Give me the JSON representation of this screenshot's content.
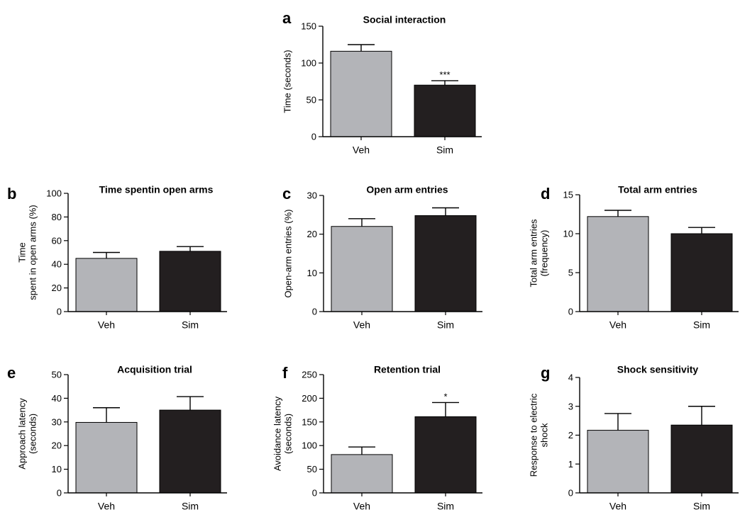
{
  "colors": {
    "veh": "#b3b4b8",
    "sim": "#231f20",
    "axis": "#000000"
  },
  "chart_data": [
    {
      "panel": "a",
      "type": "bar",
      "title": "Social interaction",
      "ylabel": [
        "Time (seconds)"
      ],
      "ylim": [
        0,
        150
      ],
      "yticks": [
        0,
        50,
        100,
        150
      ],
      "categories": [
        "Veh",
        "Sim"
      ],
      "values": [
        116,
        70
      ],
      "errors": [
        9,
        6
      ],
      "significance": [
        "",
        "***"
      ]
    },
    {
      "panel": "b",
      "type": "bar",
      "title": "Time spentin open arms",
      "ylabel": [
        "Time",
        "spent in open arms (%)"
      ],
      "ylim": [
        0,
        100
      ],
      "yticks": [
        0,
        20,
        40,
        60,
        80,
        100
      ],
      "categories": [
        "Veh",
        "Sim"
      ],
      "values": [
        45,
        51
      ],
      "errors": [
        5,
        4
      ],
      "significance": [
        "",
        ""
      ]
    },
    {
      "panel": "c",
      "type": "bar",
      "title": "Open arm entries",
      "ylabel": [
        "Open-arm entries (%)"
      ],
      "ylim": [
        0,
        30
      ],
      "yticks": [
        0,
        10,
        20,
        30
      ],
      "categories": [
        "Veh",
        "Sim"
      ],
      "values": [
        22,
        24.8
      ],
      "errors": [
        2,
        2
      ],
      "significance": [
        "",
        ""
      ]
    },
    {
      "panel": "d",
      "type": "bar",
      "title": "Total arm entries",
      "ylabel": [
        "Total arm entries",
        "(frequency)"
      ],
      "ylim": [
        0,
        15
      ],
      "yticks": [
        0,
        5,
        10,
        15
      ],
      "categories": [
        "Veh",
        "Sim"
      ],
      "values": [
        12.2,
        10
      ],
      "errors": [
        0.8,
        0.8
      ],
      "significance": [
        "",
        ""
      ]
    },
    {
      "panel": "e",
      "type": "bar",
      "title": "Acquisition trial",
      "ylabel": [
        "Approach latency",
        "(seconds)"
      ],
      "ylim": [
        0,
        50
      ],
      "yticks": [
        0,
        10,
        20,
        30,
        40,
        50
      ],
      "categories": [
        "Veh",
        "Sim"
      ],
      "values": [
        29.8,
        35
      ],
      "errors": [
        6.2,
        5.7
      ],
      "significance": [
        "",
        ""
      ]
    },
    {
      "panel": "f",
      "type": "bar",
      "title": "Retention trial",
      "ylabel": [
        "Avoidance latency",
        "(seconds)"
      ],
      "ylim": [
        0,
        250
      ],
      "yticks": [
        0,
        50,
        100,
        150,
        200,
        250
      ],
      "categories": [
        "Veh",
        "Sim"
      ],
      "values": [
        81,
        161
      ],
      "errors": [
        16,
        30
      ],
      "significance": [
        "",
        "*"
      ]
    },
    {
      "panel": "g",
      "type": "bar",
      "title": "Shock sensitivity",
      "ylabel": [
        "Response to electric",
        "shock"
      ],
      "ylim": [
        0,
        4
      ],
      "yticks": [
        0,
        1,
        2,
        3,
        4
      ],
      "categories": [
        "Veh",
        "Sim"
      ],
      "values": [
        2.17,
        2.35
      ],
      "errors": [
        0.58,
        0.65
      ],
      "significance": [
        "",
        ""
      ]
    }
  ]
}
